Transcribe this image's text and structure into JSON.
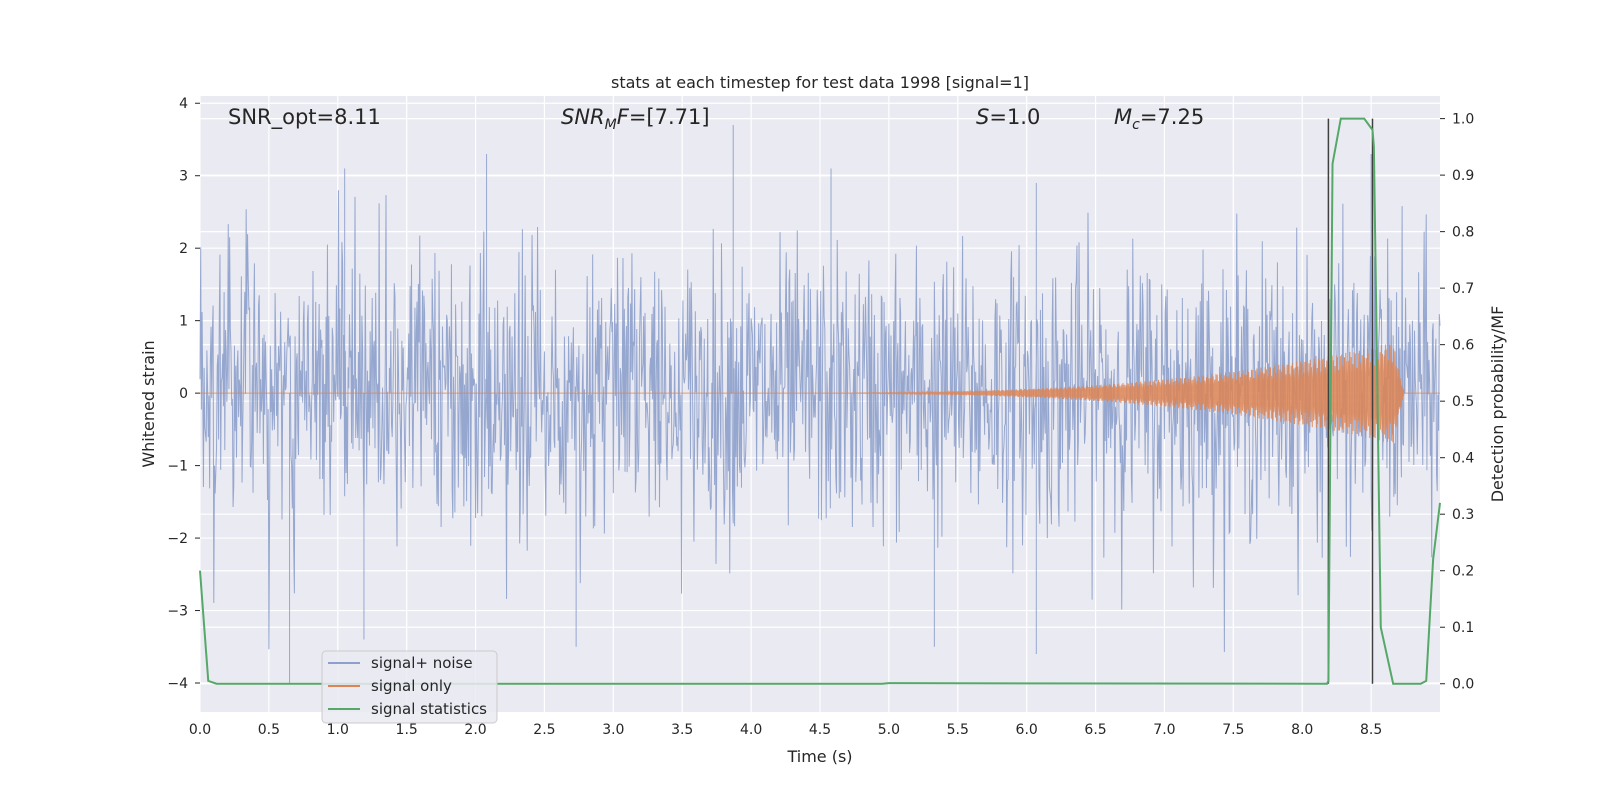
{
  "chart_data": {
    "type": "line",
    "title": "stats at each timestep for test data 1998 [signal=1]",
    "xlabel": "Time (s)",
    "ylabel_left": "Whitened strain",
    "ylabel_right": "Detection probability/MF",
    "xlim": [
      0.0,
      9.0
    ],
    "ylim_left": [
      -4.4,
      4.1
    ],
    "ylim_right": [
      -0.05,
      1.04
    ],
    "x_ticks": [
      "0.0",
      "0.5",
      "1.0",
      "1.5",
      "2.0",
      "2.5",
      "3.0",
      "3.5",
      "4.0",
      "4.5",
      "5.0",
      "5.5",
      "6.0",
      "6.5",
      "7.0",
      "7.5",
      "8.0",
      "8.5"
    ],
    "y_left_ticks": [
      "−4",
      "−3",
      "−2",
      "−1",
      "0",
      "1",
      "2",
      "3",
      "4"
    ],
    "y_right_ticks": [
      "0.0",
      "0.1",
      "0.2",
      "0.3",
      "0.4",
      "0.5",
      "0.6",
      "0.7",
      "0.8",
      "0.9",
      "1.0"
    ],
    "grid": true,
    "legend_position": "lower-left",
    "annotations": {
      "snr_opt": "SNR_opt=8.11",
      "snr_mf_base": "SNR",
      "snr_mf_sub": "M",
      "snr_mf_rest": "F=[7.71]",
      "s_italic": "S",
      "s_rest": "=1.0",
      "mc_italic": "M",
      "mc_sub": "c",
      "mc_rest": "=7.25"
    },
    "vertical_lines_x": [
      8.19,
      8.51
    ],
    "series": [
      {
        "name": "signal+ noise",
        "color": "#8da0cb",
        "axis": "left",
        "description_values": {
          "envelope_typical": [
            -1.8,
            1.9
          ],
          "peaks_up": [
            [
              1.05,
              3.1
            ],
            [
              2.08,
              3.3
            ],
            [
              3.87,
              3.7
            ],
            [
              4.58,
              3.1
            ],
            [
              6.07,
              2.9
            ],
            [
              8.5,
              3.3
            ]
          ],
          "peaks_down": [
            [
              0.65,
              -4.0
            ],
            [
              1.19,
              -3.4
            ],
            [
              2.73,
              -3.5
            ],
            [
              5.33,
              -3.5
            ],
            [
              6.07,
              -3.6
            ],
            [
              8.19,
              -2.7
            ]
          ]
        }
      },
      {
        "name": "signal only",
        "color": "#dd8452",
        "axis": "left",
        "chirp": {
          "start_x": 4.2,
          "merger_x": 8.66,
          "end_x": 9.0,
          "max_amp": 0.7
        }
      },
      {
        "name": "signal statistics",
        "color": "#55a868",
        "axis": "right",
        "x": [
          0.0,
          0.06,
          0.12,
          4.95,
          5.0,
          8.18,
          8.19,
          8.22,
          8.28,
          8.33,
          8.45,
          8.51,
          8.52,
          8.57,
          8.66,
          8.73,
          8.86,
          8.9,
          8.95,
          9.0
        ],
        "y": [
          0.2,
          0.005,
          0.0,
          0.0,
          0.001,
          0.0,
          0.005,
          0.92,
          1.0,
          1.0,
          1.0,
          0.98,
          0.95,
          0.1,
          0.0,
          0.0,
          0.0,
          0.005,
          0.22,
          0.32
        ]
      }
    ]
  }
}
